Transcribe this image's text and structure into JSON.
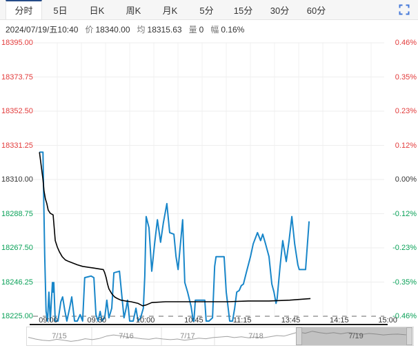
{
  "colors": {
    "up_red": "#e23a3a",
    "down_green": "#0aa158",
    "neutral": "#333333",
    "price_line": "#1886c9",
    "avg_line": "#000000",
    "accent_blue": "#4779d9",
    "grid": "#eeeeee",
    "dashed_baseline": "#999999"
  },
  "tabs": {
    "items": [
      {
        "label": "分时",
        "active": true
      },
      {
        "label": "5日",
        "active": false
      },
      {
        "label": "日K",
        "active": false
      },
      {
        "label": "周K",
        "active": false
      },
      {
        "label": "月K",
        "active": false
      },
      {
        "label": "5分",
        "active": false
      },
      {
        "label": "15分",
        "active": false
      },
      {
        "label": "30分",
        "active": false
      },
      {
        "label": "60分",
        "active": false
      }
    ],
    "fullscreen_icon": "fullscreen-expand"
  },
  "info": {
    "datetime": "2024/07/19/五10:40",
    "price_label": "价",
    "price": "18340.00",
    "avg_label": "均",
    "avg": "18315.63",
    "vol_label": "量",
    "vol": "0",
    "chg_label": "幅",
    "chg": "0.16%"
  },
  "chart_data": {
    "type": "line",
    "x_axis_labels": [
      "09:00",
      "09:30",
      "10:00",
      "10:45",
      "11:15",
      "13:45",
      "14:15",
      "15:00"
    ],
    "y_axis_left_prices": [
      "18395.00",
      "18373.75",
      "18352.50",
      "18331.25",
      "18310.00",
      "18288.75",
      "18267.50",
      "18246.25",
      "18225.00"
    ],
    "y_axis_right_percent": [
      "0.46%",
      "0.35%",
      "0.23%",
      "0.12%",
      "0.00%",
      "-0.12%",
      "-0.23%",
      "-0.35%",
      "-0.46%"
    ],
    "ylim": [
      18225,
      18395
    ],
    "baseline_price": 18310.0,
    "grid": true,
    "series": [
      {
        "name": "price",
        "color": "#1886c9",
        "width": 2,
        "points": [
          [
            0.018,
            18327
          ],
          [
            0.028,
            18327
          ],
          [
            0.03,
            18300
          ],
          [
            0.033,
            18263
          ],
          [
            0.037,
            18228
          ],
          [
            0.041,
            18222
          ],
          [
            0.045,
            18240
          ],
          [
            0.049,
            18222
          ],
          [
            0.055,
            18246
          ],
          [
            0.057,
            18240
          ],
          [
            0.059,
            18246
          ],
          [
            0.063,
            18222
          ],
          [
            0.071,
            18222
          ],
          [
            0.079,
            18234
          ],
          [
            0.084,
            18237
          ],
          [
            0.09,
            18229
          ],
          [
            0.096,
            18222
          ],
          [
            0.104,
            18230
          ],
          [
            0.11,
            18237
          ],
          [
            0.118,
            18222
          ],
          [
            0.126,
            18222
          ],
          [
            0.134,
            18226
          ],
          [
            0.141,
            18222
          ],
          [
            0.147,
            18249
          ],
          [
            0.165,
            18250
          ],
          [
            0.173,
            18249
          ],
          [
            0.179,
            18226
          ],
          [
            0.185,
            18222
          ],
          [
            0.191,
            18228
          ],
          [
            0.196,
            18222
          ],
          [
            0.204,
            18224
          ],
          [
            0.21,
            18235
          ],
          [
            0.216,
            18224
          ],
          [
            0.224,
            18230
          ],
          [
            0.23,
            18252
          ],
          [
            0.246,
            18253
          ],
          [
            0.253,
            18237
          ],
          [
            0.259,
            18224
          ],
          [
            0.265,
            18230
          ],
          [
            0.269,
            18235
          ],
          [
            0.275,
            18222
          ],
          [
            0.285,
            18222
          ],
          [
            0.293,
            18230
          ],
          [
            0.299,
            18222
          ],
          [
            0.306,
            18224
          ],
          [
            0.314,
            18230
          ],
          [
            0.318,
            18250
          ],
          [
            0.322,
            18287
          ],
          [
            0.33,
            18280
          ],
          [
            0.338,
            18253
          ],
          [
            0.346,
            18270
          ],
          [
            0.354,
            18285
          ],
          [
            0.363,
            18271
          ],
          [
            0.371,
            18283
          ],
          [
            0.381,
            18295
          ],
          [
            0.389,
            18277
          ],
          [
            0.401,
            18276
          ],
          [
            0.407,
            18262
          ],
          [
            0.413,
            18254
          ],
          [
            0.426,
            18285
          ],
          [
            0.432,
            18246
          ],
          [
            0.44,
            18240
          ],
          [
            0.45,
            18231
          ],
          [
            0.456,
            18222
          ],
          [
            0.458,
            18222
          ],
          [
            0.462,
            18235
          ],
          [
            0.489,
            18235
          ],
          [
            0.493,
            18222
          ],
          [
            0.501,
            18222
          ],
          [
            0.511,
            18224
          ],
          [
            0.517,
            18256
          ],
          [
            0.521,
            18262
          ],
          [
            0.544,
            18262
          ],
          [
            0.55,
            18240
          ],
          [
            0.554,
            18233
          ],
          [
            0.56,
            18222
          ],
          [
            0.568,
            18222
          ],
          [
            0.574,
            18230
          ],
          [
            0.58,
            18240
          ],
          [
            0.587,
            18241
          ],
          [
            0.593,
            18244
          ],
          [
            0.599,
            18245
          ],
          [
            0.607,
            18252
          ],
          [
            0.619,
            18262
          ],
          [
            0.627,
            18270
          ],
          [
            0.639,
            18277
          ],
          [
            0.648,
            18272
          ],
          [
            0.654,
            18276
          ],
          [
            0.662,
            18270
          ],
          [
            0.672,
            18262
          ],
          [
            0.68,
            18245
          ],
          [
            0.686,
            18240
          ],
          [
            0.692,
            18233
          ],
          [
            0.695,
            18236
          ],
          [
            0.703,
            18255
          ],
          [
            0.711,
            18272
          ],
          [
            0.721,
            18259
          ],
          [
            0.729,
            18272
          ],
          [
            0.737,
            18287
          ],
          [
            0.745,
            18270
          ],
          [
            0.754,
            18257
          ],
          [
            0.758,
            18254
          ],
          [
            0.776,
            18254
          ],
          [
            0.786,
            18284
          ]
        ]
      },
      {
        "name": "average",
        "color": "#000000",
        "width": 1.6,
        "points": [
          [
            0.018,
            18327
          ],
          [
            0.024,
            18317
          ],
          [
            0.028,
            18310
          ],
          [
            0.031,
            18303
          ],
          [
            0.035,
            18298
          ],
          [
            0.039,
            18295
          ],
          [
            0.043,
            18291
          ],
          [
            0.049,
            18289
          ],
          [
            0.057,
            18288
          ],
          [
            0.059,
            18283
          ],
          [
            0.063,
            18272
          ],
          [
            0.069,
            18268
          ],
          [
            0.075,
            18265
          ],
          [
            0.083,
            18262
          ],
          [
            0.092,
            18260
          ],
          [
            0.102,
            18259
          ],
          [
            0.114,
            18258
          ],
          [
            0.126,
            18257
          ],
          [
            0.141,
            18256
          ],
          [
            0.171,
            18255
          ],
          [
            0.2,
            18254
          ],
          [
            0.204,
            18252
          ],
          [
            0.208,
            18249
          ],
          [
            0.212,
            18245
          ],
          [
            0.216,
            18242
          ],
          [
            0.224,
            18239
          ],
          [
            0.232,
            18237
          ],
          [
            0.24,
            18236
          ],
          [
            0.25,
            18235
          ],
          [
            0.263,
            18234.5
          ],
          [
            0.279,
            18234
          ],
          [
            0.299,
            18233
          ],
          [
            0.312,
            18231.5
          ],
          [
            0.322,
            18232
          ],
          [
            0.338,
            18233.5
          ],
          [
            0.377,
            18234
          ],
          [
            0.495,
            18234
          ],
          [
            0.554,
            18234
          ],
          [
            0.613,
            18234.5
          ],
          [
            0.672,
            18234.5
          ],
          [
            0.731,
            18235
          ],
          [
            0.79,
            18236
          ]
        ]
      }
    ]
  },
  "navigator": {
    "dates": [
      "7/15",
      "7/16",
      "7/17",
      "7/18",
      "7/19"
    ],
    "selected_date": "7/19",
    "sparkline": [
      0.5,
      0.38,
      0.3,
      0.26,
      0.36,
      0.3,
      0.22,
      0.28,
      0.4,
      0.34,
      0.42,
      0.58,
      0.66,
      0.6,
      0.52,
      0.46,
      0.4,
      0.36,
      0.44,
      0.38,
      0.34,
      0.38,
      0.3,
      0.36,
      0.44,
      0.4,
      0.48,
      0.52,
      0.56,
      0.48,
      0.54,
      0.46,
      0.52,
      0.46,
      0.54,
      0.62,
      0.58,
      0.72,
      0.86,
      0.78,
      0.92,
      0.82,
      0.76,
      0.82,
      0.74,
      0.82,
      0.78,
      0.7,
      0.76,
      0.72,
      0.66,
      0.7,
      0.72,
      0.68,
      0.66
    ]
  }
}
